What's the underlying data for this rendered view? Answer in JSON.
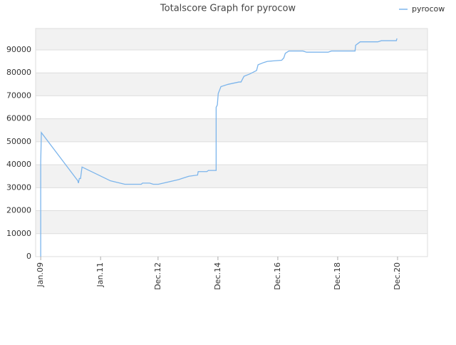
{
  "chart_data": {
    "type": "line",
    "title": "Totalscore Graph for pyrocow",
    "x": [
      2009.0,
      2009.0,
      2009.02,
      2009.02,
      2010.24,
      2010.26,
      2010.29,
      2010.33,
      2010.38,
      2011.33,
      2011.81,
      2012.36,
      2012.4,
      2012.64,
      2012.76,
      2012.93,
      2013.6,
      2013.95,
      2014.24,
      2014.26,
      2014.55,
      2014.6,
      2014.86,
      2014.86,
      2014.9,
      2014.93,
      2015.02,
      2015.26,
      2015.62,
      2015.69,
      2015.79,
      2015.98,
      2016.21,
      2016.26,
      2016.45,
      2016.57,
      2017.05,
      2017.12,
      2017.17,
      2017.29,
      2017.76,
      2017.88,
      2018.6,
      2018.71,
      2019.5,
      2019.52,
      2019.62,
      2019.67,
      2020.26,
      2020.38,
      2020.88,
      2020.9
    ],
    "series": [
      {
        "name": "pyrocow",
        "color": "#7cb5ec",
        "values": [
          0,
          41000,
          53000,
          54000,
          33000,
          32000,
          34000,
          34000,
          39000,
          33000,
          31500,
          31500,
          32000,
          32000,
          31500,
          31500,
          33500,
          35000,
          35500,
          37000,
          37000,
          37500,
          37500,
          65000,
          66000,
          71000,
          74000,
          75000,
          76000,
          76000,
          78500,
          79500,
          81000,
          83500,
          84500,
          85000,
          85500,
          86500,
          88500,
          89500,
          89500,
          89000,
          89000,
          89500,
          89500,
          92000,
          93000,
          93500,
          93500,
          94000,
          94000,
          95000
        ]
      }
    ],
    "xlim": [
      2008.83,
      2021.92
    ],
    "xticks": [
      {
        "value": 2009.0,
        "label": "Jan.09"
      },
      {
        "value": 2011.0,
        "label": "Jan.11"
      },
      {
        "value": 2012.92,
        "label": "Dec.12"
      },
      {
        "value": 2014.92,
        "label": "Dec.14"
      },
      {
        "value": 2016.92,
        "label": "Dec.16"
      },
      {
        "value": 2018.92,
        "label": "Dec.18"
      },
      {
        "value": 2020.92,
        "label": "Dec.20"
      }
    ],
    "ylim": [
      0,
      99300
    ],
    "yticks": [
      0,
      10000,
      20000,
      30000,
      40000,
      50000,
      60000,
      70000,
      80000,
      90000
    ],
    "grid": true,
    "legend": "top-right"
  }
}
